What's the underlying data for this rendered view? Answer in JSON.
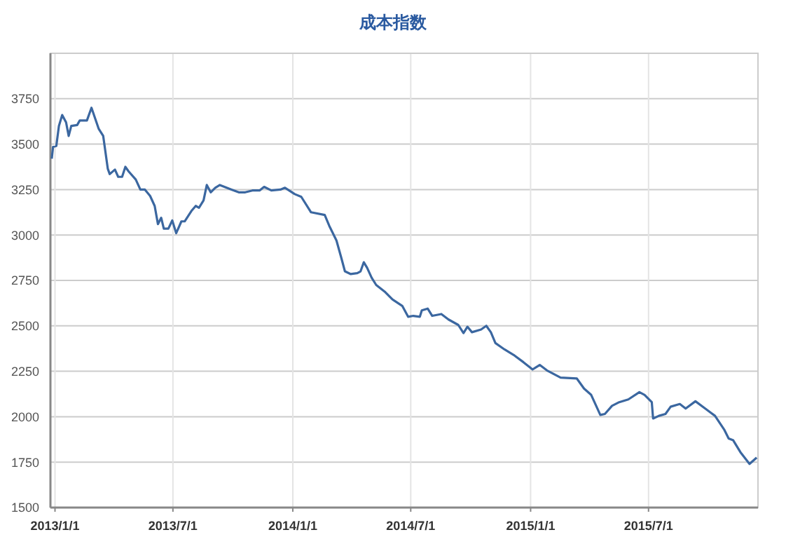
{
  "chart_data": {
    "type": "line",
    "title": "成本指数",
    "x": [
      "2012-12-27",
      "2012-12-29",
      "2013-01-03",
      "2013-01-07",
      "2013-01-12",
      "2013-01-18",
      "2013-01-22",
      "2013-01-26",
      "2013-02-04",
      "2013-02-08",
      "2013-02-19",
      "2013-02-26",
      "2013-03-09",
      "2013-03-16",
      "2013-03-23",
      "2013-03-26",
      "2013-04-03",
      "2013-04-08",
      "2013-04-14",
      "2013-04-19",
      "2013-04-24",
      "2013-05-05",
      "2013-05-12",
      "2013-05-19",
      "2013-05-27",
      "2013-06-03",
      "2013-06-08",
      "2013-06-13",
      "2013-06-17",
      "2013-06-24",
      "2013-06-30",
      "2013-07-06",
      "2013-07-14",
      "2013-07-19",
      "2013-07-30",
      "2013-08-05",
      "2013-08-10",
      "2013-08-17",
      "2013-08-22",
      "2013-08-28",
      "2013-09-04",
      "2013-09-11",
      "2013-09-18",
      "2013-09-29",
      "2013-10-10",
      "2013-10-20",
      "2013-10-31",
      "2013-11-11",
      "2013-11-18",
      "2013-11-29",
      "2013-12-13",
      "2013-12-20",
      "2014-01-04",
      "2014-01-14",
      "2014-01-29",
      "2014-02-19",
      "2014-02-26",
      "2014-03-09",
      "2014-03-16",
      "2014-03-22",
      "2014-03-31",
      "2014-04-10",
      "2014-04-15",
      "2014-04-20",
      "2014-04-25",
      "2014-05-02",
      "2014-05-09",
      "2014-05-23",
      "2014-06-03",
      "2014-06-18",
      "2014-06-27",
      "2014-07-05",
      "2014-07-15",
      "2014-07-18",
      "2014-07-27",
      "2014-08-03",
      "2014-08-17",
      "2014-08-28",
      "2014-09-12",
      "2014-09-20",
      "2014-09-26",
      "2014-10-03",
      "2014-10-17",
      "2014-10-25",
      "2014-11-01",
      "2014-11-08",
      "2014-11-22",
      "2014-12-06",
      "2014-12-21",
      "2015-01-04",
      "2015-01-15",
      "2015-01-26",
      "2015-02-16",
      "2015-03-13",
      "2015-03-24",
      "2015-04-04",
      "2015-04-18",
      "2015-04-25",
      "2015-05-06",
      "2015-05-17",
      "2015-05-31",
      "2015-06-17",
      "2015-06-25",
      "2015-07-06",
      "2015-07-08",
      "2015-07-17",
      "2015-07-27",
      "2015-08-04",
      "2015-08-18",
      "2015-08-27",
      "2015-09-11",
      "2015-09-26",
      "2015-10-11",
      "2015-10-25",
      "2015-11-01",
      "2015-11-08",
      "2015-11-19",
      "2015-12-03",
      "2015-12-14"
    ],
    "series": [
      {
        "color": "#3b67a0",
        "values": [
          3420,
          3485,
          3490,
          3600,
          3660,
          3620,
          3545,
          3600,
          3605,
          3630,
          3630,
          3700,
          3585,
          3545,
          3365,
          3335,
          3360,
          3320,
          3320,
          3375,
          3350,
          3305,
          3250,
          3250,
          3215,
          3160,
          3060,
          3095,
          3035,
          3035,
          3080,
          3010,
          3075,
          3075,
          3135,
          3160,
          3150,
          3190,
          3275,
          3235,
          3260,
          3275,
          3265,
          3250,
          3235,
          3235,
          3245,
          3245,
          3265,
          3245,
          3250,
          3260,
          3225,
          3210,
          3125,
          3110,
          3050,
          2970,
          2880,
          2800,
          2785,
          2790,
          2800,
          2850,
          2820,
          2765,
          2725,
          2685,
          2645,
          2610,
          2550,
          2555,
          2550,
          2585,
          2595,
          2555,
          2565,
          2535,
          2505,
          2460,
          2495,
          2465,
          2480,
          2500,
          2465,
          2405,
          2370,
          2340,
          2300,
          2260,
          2285,
          2255,
          2215,
          2210,
          2155,
          2120,
          2010,
          2015,
          2060,
          2080,
          2095,
          2135,
          2120,
          2080,
          1990,
          2005,
          2015,
          2055,
          2070,
          2045,
          2085,
          2045,
          2005,
          1930,
          1880,
          1870,
          1805,
          1740,
          1775
        ]
      }
    ],
    "xlim": [
      "2012-12-25",
      "2015-12-16"
    ],
    "xticks": [
      {
        "value": "2013-01-01",
        "label": "2013/1/1"
      },
      {
        "value": "2013-07-01",
        "label": "2013/7/1"
      },
      {
        "value": "2014-01-01",
        "label": "2014/1/1"
      },
      {
        "value": "2014-07-01",
        "label": "2014/7/1"
      },
      {
        "value": "2015-01-01",
        "label": "2015/1/1"
      },
      {
        "value": "2015-07-01",
        "label": "2015/7/1"
      }
    ],
    "ylim": [
      1500,
      4000
    ],
    "yticks": [
      1500,
      1750,
      2000,
      2250,
      2500,
      2750,
      3000,
      3250,
      3500,
      3750
    ],
    "grid": true,
    "line_style": "solid"
  }
}
